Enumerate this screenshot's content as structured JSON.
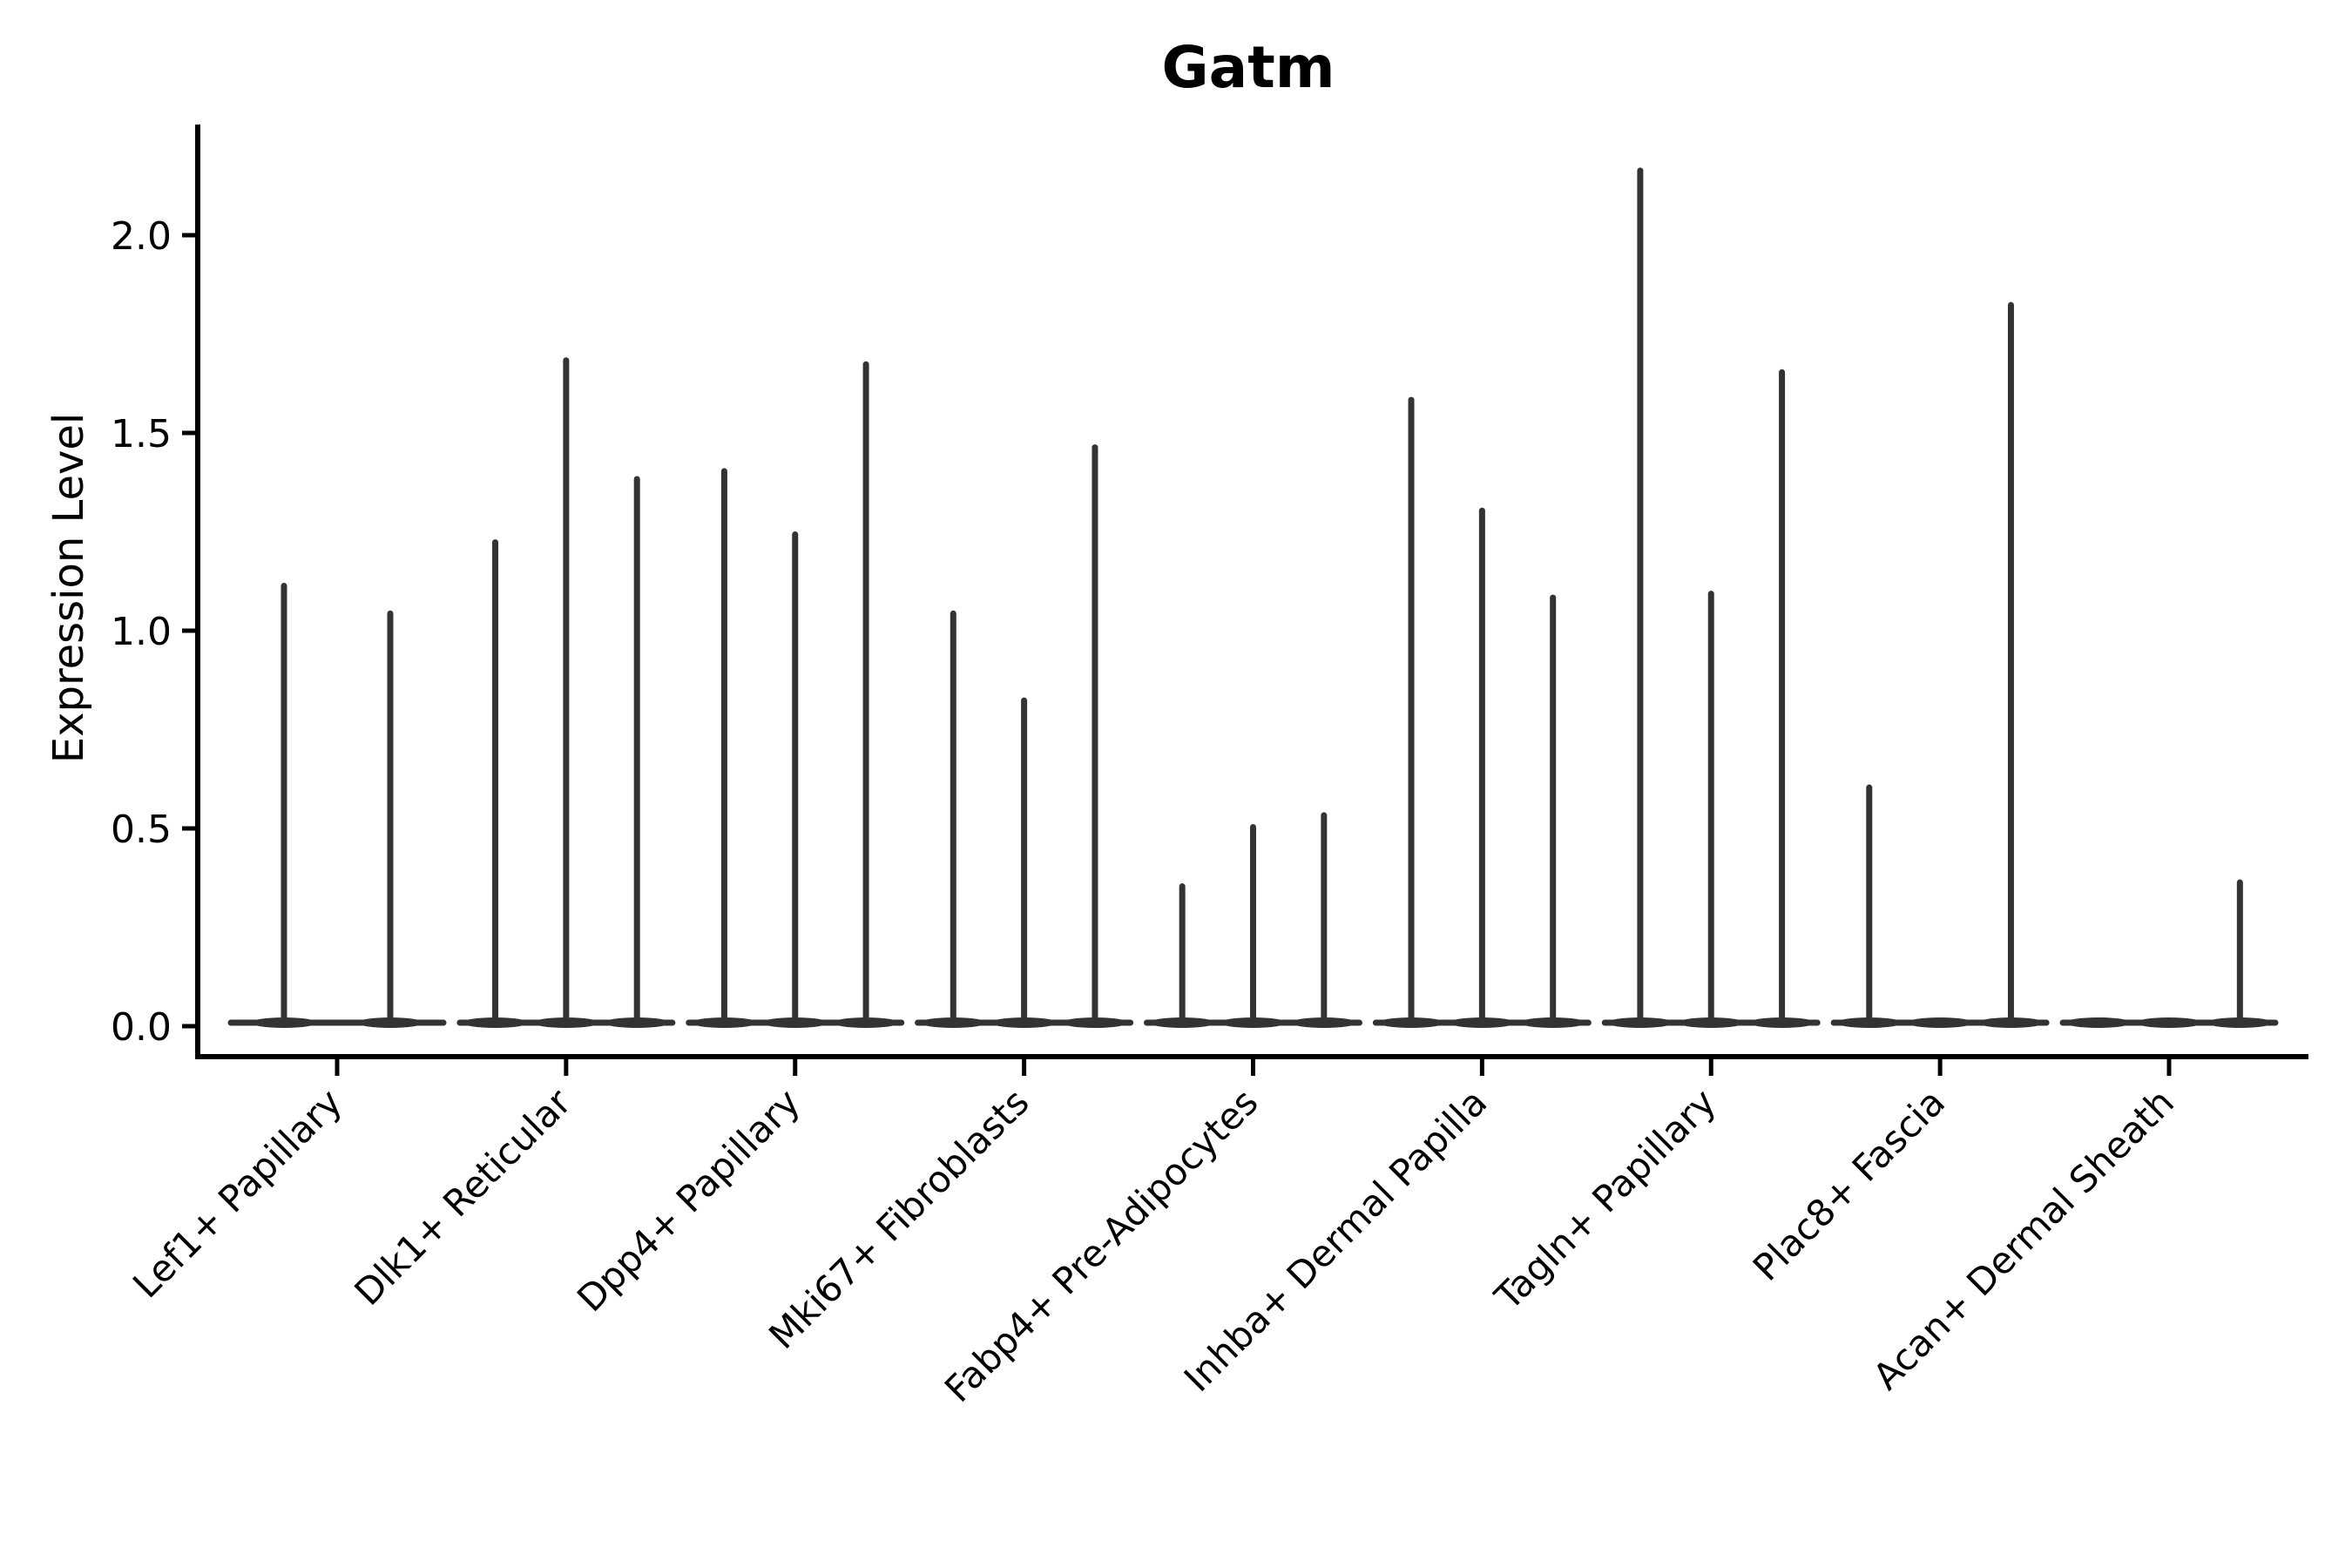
{
  "figure": {
    "title": "Gatm",
    "y_axis_label": "Expression Level"
  },
  "chart_data": {
    "type": "violin",
    "title": "Gatm",
    "xlabel": "",
    "ylabel": "Expression Level",
    "yticks": [
      0.0,
      0.5,
      1.0,
      1.5,
      2.0
    ],
    "ytick_labels": [
      "0.0",
      "0.5",
      "1.0",
      "1.5",
      "2.0"
    ],
    "ylim": [
      -0.09,
      2.28
    ],
    "grid": false,
    "legend": false,
    "x_tick_rotation_deg": 45,
    "categories": [
      "Lef1+ Papillary",
      "Dlk1+ Reticular",
      "Dpp4+ Papillary",
      "Mki67+ Fibroblasts",
      "Fabp4+ Pre-Adipocytes",
      "Inhba+ Dermal Papilla",
      "Tagln+ Papillary",
      "Plac8+ Fascia",
      "Acan+ Dermal Sheath"
    ],
    "groups": [
      {
        "category": "Lef1+ Papillary",
        "violin_max_values": [
          1.12,
          1.05
        ]
      },
      {
        "category": "Dlk1+ Reticular",
        "violin_max_values": [
          1.23,
          1.69,
          1.39
        ]
      },
      {
        "category": "Dpp4+ Papillary",
        "violin_max_values": [
          1.41,
          1.25,
          1.68
        ]
      },
      {
        "category": "Mki67+ Fibroblasts",
        "violin_max_values": [
          1.05,
          0.83,
          1.47
        ]
      },
      {
        "category": "Fabp4+ Pre-Adipocytes",
        "violin_max_values": [
          0.36,
          0.51,
          0.54
        ]
      },
      {
        "category": "Inhba+ Dermal Papilla",
        "violin_max_values": [
          1.59,
          1.31,
          1.09
        ]
      },
      {
        "category": "Tagln+ Papillary",
        "violin_max_values": [
          2.17,
          1.1,
          1.66
        ]
      },
      {
        "category": "Plac8+ Fascia",
        "violin_max_values": [
          0.61,
          0.0,
          1.83
        ]
      },
      {
        "category": "Acan+ Dermal Sheath",
        "violin_max_values": [
          0.0,
          0.0,
          0.37
        ]
      }
    ]
  },
  "colors": {
    "background": "#ffffff",
    "violin": "#333333",
    "axis": "#000000",
    "text": "#000000"
  }
}
